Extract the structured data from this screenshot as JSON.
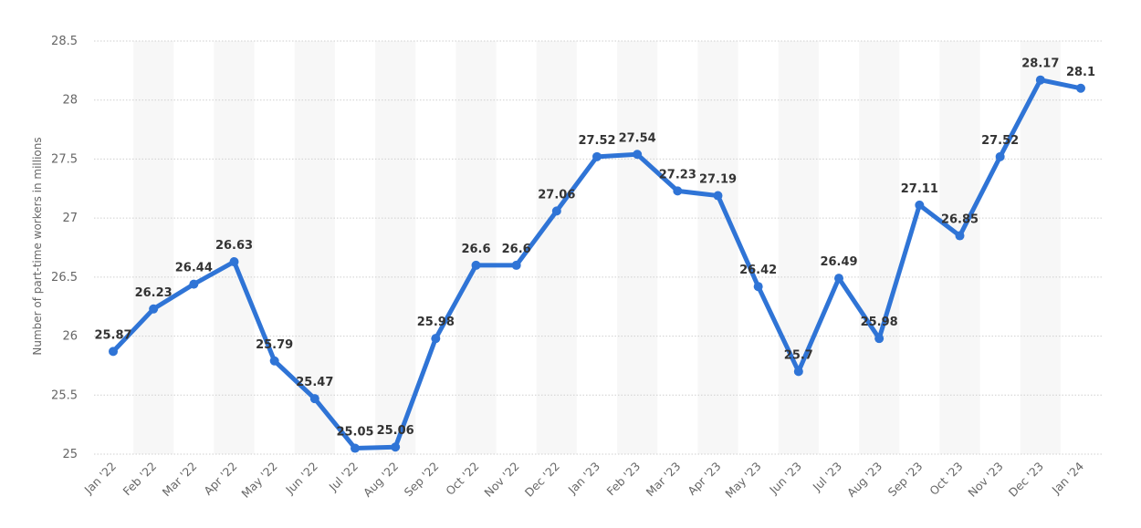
{
  "chart_data": {
    "type": "line",
    "title": "",
    "xlabel": "",
    "ylabel": "Number of part-time workers in millions",
    "ylim": [
      25,
      28.5
    ],
    "yticks": [
      "25",
      "25.5",
      "26",
      "26.5",
      "27",
      "27.5",
      "28",
      "28.5"
    ],
    "grid": true,
    "categories": [
      "Jan '22",
      "Feb '22",
      "Mar '22",
      "Apr '22",
      "May '22",
      "Jun '22",
      "Jul '22",
      "Aug '22",
      "Sep '22",
      "Oct '22",
      "Nov '22",
      "Dec '22",
      "Jan '23",
      "Feb '23",
      "Mar '23",
      "Apr '23",
      "May '23",
      "Jun '23",
      "Jul '23",
      "Aug '23",
      "Sep '23",
      "Oct '23",
      "Nov '23",
      "Dec '23",
      "Jan '24"
    ],
    "values": [
      25.87,
      26.23,
      26.44,
      26.63,
      25.79,
      25.47,
      25.05,
      25.06,
      25.98,
      26.6,
      26.6,
      27.06,
      27.52,
      27.54,
      27.23,
      27.19,
      26.42,
      25.7,
      26.49,
      25.98,
      27.11,
      26.85,
      27.52,
      28.17,
      28.1
    ],
    "line_color": "#2f74d6"
  }
}
